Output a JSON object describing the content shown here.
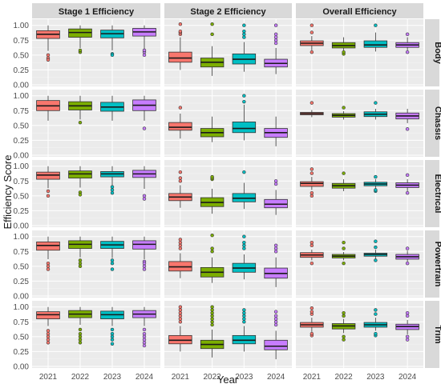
{
  "chart_data": {
    "type": "boxplot",
    "xlabel": "Year",
    "ylabel": "Efficiency Score",
    "ylim": [
      0,
      1.05
    ],
    "y_ticks": [
      "0.00",
      "0.25",
      "0.50",
      "0.75",
      "1.00"
    ],
    "y_tick_values": [
      0,
      0.25,
      0.5,
      0.75,
      1.0
    ],
    "categories": [
      "2021",
      "2022",
      "2023",
      "2024"
    ],
    "series_colors": [
      "#F8766D",
      "#7CAE00",
      "#00BFC4",
      "#C77CFF"
    ],
    "grid": true,
    "columns": [
      "Stage 1 Efficiency",
      "Stage 2 Efficiency",
      "Overall Efficiency"
    ],
    "rows": [
      "Body",
      "Chassis",
      "Electrical",
      "Powertrain",
      "Trim"
    ],
    "panels": [
      [
        [
          {
            "lo": 0.57,
            "q1": 0.78,
            "med": 0.85,
            "q3": 0.91,
            "hi": 1.0,
            "out": [
              0.45,
              0.42,
              0.5
            ]
          },
          {
            "lo": 0.62,
            "q1": 0.8,
            "med": 0.88,
            "q3": 0.94,
            "hi": 1.0,
            "out": [
              0.55,
              0.58
            ]
          },
          {
            "lo": 0.58,
            "q1": 0.79,
            "med": 0.86,
            "q3": 0.92,
            "hi": 1.0,
            "out": [
              0.52,
              0.5
            ]
          },
          {
            "lo": 0.6,
            "q1": 0.82,
            "med": 0.89,
            "q3": 0.95,
            "hi": 1.0,
            "out": [
              0.55,
              0.5,
              0.58
            ]
          }
        ],
        [
          {
            "lo": 0.25,
            "q1": 0.38,
            "med": 0.45,
            "q3": 0.55,
            "hi": 0.8,
            "out": [
              0.85,
              0.88,
              0.9,
              1.02
            ]
          },
          {
            "lo": 0.15,
            "q1": 0.3,
            "med": 0.38,
            "q3": 0.45,
            "hi": 0.65,
            "out": [
              0.85,
              1.02
            ]
          },
          {
            "lo": 0.22,
            "q1": 0.35,
            "med": 0.43,
            "q3": 0.52,
            "hi": 0.72,
            "out": [
              0.8,
              0.85,
              0.9,
              1.0
            ]
          },
          {
            "lo": 0.18,
            "q1": 0.3,
            "med": 0.36,
            "q3": 0.43,
            "hi": 0.62,
            "out": [
              0.7,
              0.75,
              0.8,
              0.85,
              1.0
            ]
          }
        ],
        [
          {
            "lo": 0.58,
            "q1": 0.66,
            "med": 0.7,
            "q3": 0.74,
            "hi": 0.82,
            "out": [
              0.55,
              0.88,
              1.0
            ]
          },
          {
            "lo": 0.54,
            "q1": 0.62,
            "med": 0.66,
            "q3": 0.71,
            "hi": 0.8,
            "out": [
              0.52,
              0.55
            ]
          },
          {
            "lo": 0.56,
            "q1": 0.63,
            "med": 0.67,
            "q3": 0.74,
            "hi": 0.88,
            "out": [
              1.0
            ]
          },
          {
            "lo": 0.56,
            "q1": 0.63,
            "med": 0.67,
            "q3": 0.71,
            "hi": 0.8,
            "out": [
              0.55,
              0.85
            ]
          }
        ]
      ],
      [
        [
          {
            "lo": 0.58,
            "q1": 0.75,
            "med": 0.83,
            "q3": 0.92,
            "hi": 1.0,
            "out": []
          },
          {
            "lo": 0.6,
            "q1": 0.76,
            "med": 0.83,
            "q3": 0.9,
            "hi": 1.0,
            "out": [
              0.55
            ]
          },
          {
            "lo": 0.58,
            "q1": 0.74,
            "med": 0.81,
            "q3": 0.89,
            "hi": 1.0,
            "out": []
          },
          {
            "lo": 0.58,
            "q1": 0.75,
            "med": 0.84,
            "q3": 0.93,
            "hi": 1.0,
            "out": [
              0.45
            ]
          }
        ],
        [
          {
            "lo": 0.28,
            "q1": 0.42,
            "med": 0.47,
            "q3": 0.55,
            "hi": 0.7,
            "out": [
              0.8
            ]
          },
          {
            "lo": 0.22,
            "q1": 0.31,
            "med": 0.38,
            "q3": 0.45,
            "hi": 0.65,
            "out": []
          },
          {
            "lo": 0.25,
            "q1": 0.38,
            "med": 0.45,
            "q3": 0.56,
            "hi": 0.85,
            "out": [
              0.9,
              1.0
            ]
          },
          {
            "lo": 0.15,
            "q1": 0.3,
            "med": 0.38,
            "q3": 0.45,
            "hi": 0.65,
            "out": []
          }
        ],
        [
          {
            "lo": 0.64,
            "q1": 0.68,
            "med": 0.7,
            "q3": 0.72,
            "hi": 0.76,
            "out": [
              0.88
            ]
          },
          {
            "lo": 0.6,
            "q1": 0.64,
            "med": 0.67,
            "q3": 0.7,
            "hi": 0.74,
            "out": [
              0.8
            ]
          },
          {
            "lo": 0.6,
            "q1": 0.65,
            "med": 0.69,
            "q3": 0.73,
            "hi": 0.78,
            "out": [
              0.88
            ]
          },
          {
            "lo": 0.54,
            "q1": 0.61,
            "med": 0.66,
            "q3": 0.71,
            "hi": 0.78,
            "out": [
              0.44
            ]
          }
        ]
      ],
      [
        [
          {
            "lo": 0.63,
            "q1": 0.78,
            "med": 0.85,
            "q3": 0.9,
            "hi": 1.0,
            "out": [
              0.58,
              0.5
            ]
          },
          {
            "lo": 0.64,
            "q1": 0.8,
            "med": 0.87,
            "q3": 0.92,
            "hi": 1.0,
            "out": [
              0.56,
              0.52
            ]
          },
          {
            "lo": 0.68,
            "q1": 0.82,
            "med": 0.87,
            "q3": 0.91,
            "hi": 1.0,
            "out": [
              0.65,
              0.6,
              0.55
            ]
          },
          {
            "lo": 0.62,
            "q1": 0.81,
            "med": 0.87,
            "q3": 0.93,
            "hi": 1.0,
            "out": [
              0.5,
              0.45
            ]
          }
        ],
        [
          {
            "lo": 0.3,
            "q1": 0.42,
            "med": 0.48,
            "q3": 0.54,
            "hi": 0.68,
            "out": [
              0.75,
              0.8,
              0.9
            ]
          },
          {
            "lo": 0.2,
            "q1": 0.32,
            "med": 0.39,
            "q3": 0.47,
            "hi": 0.62,
            "out": [
              0.78,
              0.8,
              0.82
            ]
          },
          {
            "lo": 0.28,
            "q1": 0.4,
            "med": 0.46,
            "q3": 0.54,
            "hi": 0.72,
            "out": [
              0.9
            ]
          },
          {
            "lo": 0.18,
            "q1": 0.3,
            "med": 0.36,
            "q3": 0.44,
            "hi": 0.6,
            "out": [
              0.7,
              0.75
            ]
          }
        ],
        [
          {
            "lo": 0.6,
            "q1": 0.66,
            "med": 0.71,
            "q3": 0.74,
            "hi": 0.82,
            "out": [
              0.5,
              0.55,
              0.88,
              0.95
            ]
          },
          {
            "lo": 0.58,
            "q1": 0.63,
            "med": 0.67,
            "q3": 0.71,
            "hi": 0.78,
            "out": [
              0.88
            ]
          },
          {
            "lo": 0.62,
            "q1": 0.67,
            "med": 0.7,
            "q3": 0.73,
            "hi": 0.78,
            "out": [
              0.58,
              0.6,
              0.82
            ]
          },
          {
            "lo": 0.58,
            "q1": 0.64,
            "med": 0.68,
            "q3": 0.72,
            "hi": 0.78,
            "out": [
              0.55,
              0.85
            ]
          }
        ]
      ],
      [
        [
          {
            "lo": 0.62,
            "q1": 0.77,
            "med": 0.85,
            "q3": 0.91,
            "hi": 1.0,
            "out": [
              0.55,
              0.5,
              0.45
            ]
          },
          {
            "lo": 0.65,
            "q1": 0.8,
            "med": 0.87,
            "q3": 0.93,
            "hi": 1.0,
            "out": [
              0.6,
              0.55,
              0.5
            ]
          },
          {
            "lo": 0.64,
            "q1": 0.8,
            "med": 0.86,
            "q3": 0.92,
            "hi": 1.0,
            "out": [
              0.6,
              0.55,
              0.45
            ]
          },
          {
            "lo": 0.62,
            "q1": 0.79,
            "med": 0.87,
            "q3": 0.93,
            "hi": 1.0,
            "out": [
              0.58,
              0.55,
              0.5,
              0.45
            ]
          }
        ],
        [
          {
            "lo": 0.3,
            "q1": 0.42,
            "med": 0.49,
            "q3": 0.58,
            "hi": 0.72,
            "out": [
              0.8,
              0.85,
              0.9,
              0.95
            ]
          },
          {
            "lo": 0.22,
            "q1": 0.32,
            "med": 0.4,
            "q3": 0.48,
            "hi": 0.65,
            "out": [
              0.75,
              0.8,
              1.02
            ]
          },
          {
            "lo": 0.28,
            "q1": 0.4,
            "med": 0.47,
            "q3": 0.55,
            "hi": 0.7,
            "out": [
              0.8,
              0.85,
              0.9,
              1.0
            ]
          },
          {
            "lo": 0.15,
            "q1": 0.3,
            "med": 0.38,
            "q3": 0.47,
            "hi": 0.65,
            "out": [
              0.75,
              0.8,
              0.85
            ]
          }
        ],
        [
          {
            "lo": 0.6,
            "q1": 0.65,
            "med": 0.69,
            "q3": 0.73,
            "hi": 0.78,
            "out": [
              0.55,
              0.85,
              0.9
            ]
          },
          {
            "lo": 0.6,
            "q1": 0.64,
            "med": 0.67,
            "q3": 0.7,
            "hi": 0.74,
            "out": [
              0.55,
              0.8,
              0.9
            ]
          },
          {
            "lo": 0.62,
            "q1": 0.67,
            "med": 0.7,
            "q3": 0.72,
            "hi": 0.78,
            "out": [
              0.6,
              0.82,
              0.92
            ]
          },
          {
            "lo": 0.58,
            "q1": 0.62,
            "med": 0.66,
            "q3": 0.7,
            "hi": 0.76,
            "out": [
              0.55,
              0.8
            ]
          }
        ]
      ],
      [
        [
          {
            "lo": 0.68,
            "q1": 0.8,
            "med": 0.87,
            "q3": 0.92,
            "hi": 1.0,
            "out": [
              0.6,
              0.55,
              0.5,
              0.45,
              0.4
            ]
          },
          {
            "lo": 0.7,
            "q1": 0.82,
            "med": 0.88,
            "q3": 0.94,
            "hi": 1.0,
            "out": [
              0.62,
              0.55,
              0.5,
              0.45,
              0.4
            ]
          },
          {
            "lo": 0.68,
            "q1": 0.8,
            "med": 0.87,
            "q3": 0.93,
            "hi": 1.0,
            "out": [
              0.62,
              0.55,
              0.5,
              0.45,
              0.38
            ]
          },
          {
            "lo": 0.68,
            "q1": 0.82,
            "med": 0.88,
            "q3": 0.94,
            "hi": 1.0,
            "out": [
              0.62,
              0.55,
              0.5,
              0.45,
              0.4,
              0.35
            ]
          }
        ],
        [
          {
            "lo": 0.25,
            "q1": 0.38,
            "med": 0.44,
            "q3": 0.52,
            "hi": 0.68,
            "out": [
              0.75,
              0.8,
              0.85,
              0.9,
              0.95,
              1.0
            ]
          },
          {
            "lo": 0.15,
            "q1": 0.3,
            "med": 0.37,
            "q3": 0.44,
            "hi": 0.62,
            "out": [
              0.7,
              0.75,
              0.8,
              0.85,
              0.9,
              0.95,
              1.0
            ]
          },
          {
            "lo": 0.25,
            "q1": 0.38,
            "med": 0.44,
            "q3": 0.52,
            "hi": 0.68,
            "out": [
              0.75,
              0.8,
              0.85,
              0.9,
              0.95
            ]
          },
          {
            "lo": 0.12,
            "q1": 0.28,
            "med": 0.34,
            "q3": 0.44,
            "hi": 0.6,
            "out": [
              0.7,
              0.75,
              0.8,
              0.85,
              0.92
            ]
          }
        ],
        [
          {
            "lo": 0.58,
            "q1": 0.66,
            "med": 0.7,
            "q3": 0.74,
            "hi": 0.82,
            "out": [
              0.52,
              0.55,
              0.88,
              0.92,
              0.98
            ]
          },
          {
            "lo": 0.56,
            "q1": 0.63,
            "med": 0.68,
            "q3": 0.72,
            "hi": 0.8,
            "out": [
              0.45,
              0.5,
              0.85,
              0.9
            ]
          },
          {
            "lo": 0.6,
            "q1": 0.66,
            "med": 0.7,
            "q3": 0.74,
            "hi": 0.82,
            "out": [
              0.52,
              0.55,
              0.88,
              0.95
            ]
          },
          {
            "lo": 0.54,
            "q1": 0.62,
            "med": 0.67,
            "q3": 0.71,
            "hi": 0.78,
            "out": [
              0.45,
              0.5,
              0.85,
              0.9
            ]
          }
        ]
      ]
    ]
  }
}
